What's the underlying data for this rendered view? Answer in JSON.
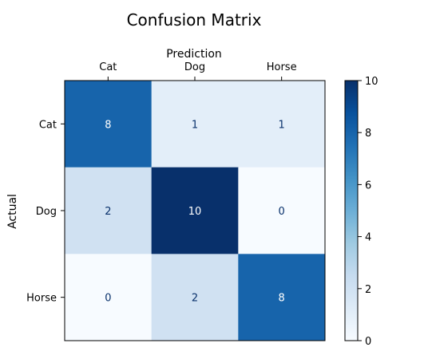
{
  "chart_data": {
    "type": "heatmap",
    "title": "Confusion Matrix",
    "xlabel": "Prediction",
    "ylabel": "Actual",
    "x_categories": [
      "Cat",
      "Dog",
      "Horse"
    ],
    "y_categories": [
      "Cat",
      "Dog",
      "Horse"
    ],
    "values": [
      [
        8,
        1,
        1
      ],
      [
        2,
        10,
        0
      ],
      [
        0,
        2,
        8
      ]
    ],
    "value_range": [
      0,
      10
    ],
    "colormap": "Blues",
    "colorbar_ticks": [
      "0",
      "2",
      "4",
      "6",
      "8",
      "10"
    ],
    "x_axis_position": "top",
    "grid": false,
    "legend": "colorbar-right",
    "colors": {
      "low": "#f7fbff",
      "high": "#08306b",
      "text_dark": "#08306b",
      "text_light": "#ffffff"
    }
  }
}
